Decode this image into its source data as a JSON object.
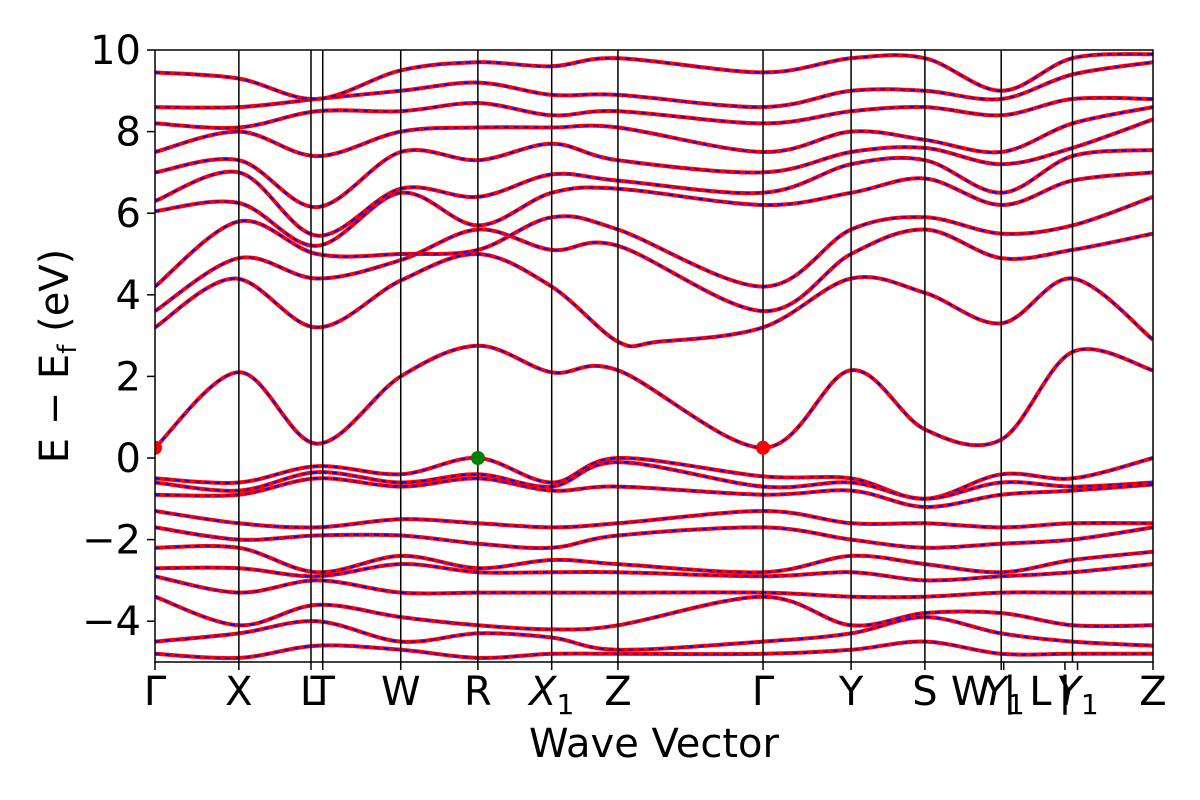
{
  "chart_data": {
    "type": "line",
    "xlabel": "Wave Vector",
    "ylabel": "E − E_f (eV)",
    "ylabel_main": "E − E",
    "ylabel_sub": "f",
    "ylabel_unit": " (eV)",
    "ylim": [
      -5,
      10
    ],
    "yticks": [
      -4,
      -2,
      0,
      2,
      4,
      6,
      8,
      10
    ],
    "ytick_labels": [
      "−4",
      "−2",
      "0",
      "2",
      "4",
      "6",
      "8",
      "10"
    ],
    "grid": false,
    "kpath_ticks": [
      {
        "label": "Γ",
        "x": 0.0
      },
      {
        "label": "X",
        "x": 1.0
      },
      {
        "label": "L",
        "x": 1.86
      },
      {
        "label": "T",
        "x": 2.0
      },
      {
        "label": "W",
        "x": 2.93
      },
      {
        "label": "R",
        "x": 3.85
      },
      {
        "label": "X",
        "sub": "1",
        "italic": true,
        "x": 4.73
      },
      {
        "label": "Z",
        "x": 5.52
      },
      {
        "label": "Γ",
        "x": 7.25
      },
      {
        "label": "Y",
        "x": 8.3
      },
      {
        "label": "S",
        "x": 9.18
      },
      {
        "label": "W | L",
        "x": 10.09
      },
      {
        "label": "Y",
        "sub": "1",
        "italic": true,
        "x": 10.12
      },
      {
        "label": "|",
        "x": 10.85
      },
      {
        "label": "Y",
        "sub": "1",
        "italic": true,
        "x": 11.0
      },
      {
        "label": "Z",
        "x": 11.9
      }
    ],
    "vertical_lines_x": [
      1.0,
      1.86,
      2.0,
      2.93,
      3.85,
      4.73,
      5.52,
      7.25,
      8.3,
      9.18,
      10.09,
      10.94
    ],
    "x_range": [
      0,
      11.9
    ],
    "series": [
      {
        "style": "band-red-blue-dashed",
        "x": [
          0,
          1.0,
          1.93,
          2.93,
          3.85,
          4.73,
          5.52,
          7.25,
          8.3,
          9.18,
          10.09,
          10.94,
          11.9
        ],
        "y": [
          0.25,
          2.1,
          0.35,
          2.0,
          2.75,
          2.1,
          2.15,
          0.25,
          2.15,
          0.7,
          0.45,
          2.6,
          2.15
        ]
      },
      {
        "style": "band-red-blue-dashed",
        "x": [
          0,
          0.95,
          1.93,
          2.93,
          3.85,
          4.73,
          5.52,
          6.0,
          7.25,
          8.3,
          9.18,
          10.09,
          10.94,
          11.9
        ],
        "y": [
          3.2,
          4.4,
          3.2,
          4.35,
          5.0,
          4.2,
          2.85,
          2.85,
          3.2,
          4.4,
          4.05,
          3.3,
          4.4,
          2.9
        ]
      },
      {
        "style": "band-red-blue-dashed",
        "x": [
          0,
          1.0,
          1.93,
          2.93,
          3.85,
          4.73,
          5.52,
          7.25,
          8.3,
          9.18,
          10.09,
          10.94,
          11.9
        ],
        "y": [
          3.6,
          4.9,
          4.4,
          4.85,
          5.6,
          5.1,
          5.2,
          3.6,
          5.0,
          5.6,
          4.9,
          5.1,
          5.5
        ]
      },
      {
        "style": "band-red-blue-dashed",
        "x": [
          0,
          1.0,
          1.93,
          2.93,
          3.85,
          4.73,
          5.52,
          7.25,
          8.3,
          9.18,
          10.09,
          10.94,
          11.9
        ],
        "y": [
          4.2,
          5.8,
          5.0,
          5.0,
          5.1,
          5.9,
          5.6,
          4.2,
          5.6,
          5.9,
          5.5,
          5.7,
          6.4
        ]
      },
      {
        "style": "band-red-blue-dashed",
        "x": [
          0,
          1.0,
          1.93,
          2.93,
          3.85,
          4.73,
          5.52,
          7.25,
          8.3,
          9.18,
          10.09,
          10.94,
          11.9
        ],
        "y": [
          6.05,
          6.25,
          5.2,
          6.5,
          5.7,
          6.5,
          6.6,
          6.2,
          6.5,
          6.85,
          6.2,
          6.8,
          7.0
        ]
      },
      {
        "style": "band-red-blue-dashed",
        "x": [
          0,
          1.0,
          1.93,
          2.93,
          3.85,
          4.73,
          5.52,
          7.25,
          8.3,
          9.18,
          10.09,
          10.94,
          11.9
        ],
        "y": [
          6.3,
          7.0,
          5.45,
          6.6,
          6.4,
          6.95,
          6.8,
          6.5,
          7.2,
          7.3,
          6.5,
          7.4,
          7.55
        ]
      },
      {
        "style": "band-red-blue-dashed",
        "x": [
          0,
          1.0,
          1.93,
          2.93,
          3.85,
          4.73,
          5.52,
          7.25,
          8.3,
          9.18,
          10.09,
          10.94,
          11.9
        ],
        "y": [
          7.0,
          7.3,
          6.15,
          7.5,
          7.3,
          7.7,
          7.3,
          7.0,
          7.5,
          7.6,
          7.2,
          7.6,
          8.3
        ]
      },
      {
        "style": "band-red-blue-dashed",
        "x": [
          0,
          1.0,
          1.93,
          2.93,
          3.85,
          4.73,
          5.52,
          7.25,
          8.3,
          9.18,
          10.09,
          10.94,
          11.9
        ],
        "y": [
          7.5,
          8.0,
          7.4,
          8.0,
          8.1,
          8.1,
          8.1,
          7.5,
          8.0,
          7.8,
          7.5,
          8.2,
          8.6
        ]
      },
      {
        "style": "band-red-blue-dashed",
        "x": [
          0,
          1.0,
          1.93,
          2.93,
          3.85,
          4.73,
          5.52,
          7.25,
          8.3,
          9.18,
          10.09,
          10.94,
          11.9
        ],
        "y": [
          8.2,
          8.1,
          8.5,
          8.5,
          8.7,
          8.4,
          8.5,
          8.2,
          8.5,
          8.6,
          8.4,
          8.8,
          8.8
        ]
      },
      {
        "style": "band-red-blue-dashed",
        "x": [
          0,
          1.0,
          1.93,
          2.93,
          3.85,
          4.73,
          5.52,
          7.25,
          8.3,
          9.18,
          10.09,
          10.94,
          11.9
        ],
        "y": [
          8.6,
          8.6,
          8.8,
          9.0,
          9.2,
          8.9,
          8.9,
          8.6,
          9.0,
          9.0,
          8.8,
          9.4,
          9.7
        ]
      },
      {
        "style": "band-red-blue-dashed",
        "x": [
          0,
          1.0,
          1.93,
          2.93,
          3.85,
          4.73,
          5.52,
          7.25,
          8.3,
          9.18,
          10.09,
          10.94,
          11.9
        ],
        "y": [
          9.45,
          9.3,
          8.8,
          9.5,
          9.7,
          9.6,
          9.8,
          9.45,
          9.8,
          9.8,
          9.0,
          9.8,
          9.9
        ]
      },
      {
        "style": "band-red-blue-dashed",
        "x": [
          0,
          1.0,
          1.93,
          2.93,
          3.85,
          4.73,
          5.52,
          7.25,
          8.3,
          9.18,
          10.09,
          10.94,
          11.9
        ],
        "y": [
          -0.5,
          -0.6,
          -0.2,
          -0.4,
          0.0,
          -0.6,
          0.0,
          -0.45,
          -0.5,
          -1.0,
          -0.4,
          -0.5,
          0.0
        ]
      },
      {
        "style": "band-red-blue-dashed",
        "x": [
          0,
          1.0,
          1.93,
          2.93,
          3.85,
          4.73,
          5.52,
          7.25,
          8.3,
          9.18,
          10.09,
          10.94,
          11.9
        ],
        "y": [
          -0.6,
          -0.8,
          -0.35,
          -0.6,
          -0.4,
          -0.7,
          -0.1,
          -0.7,
          -0.6,
          -1.0,
          -0.6,
          -0.7,
          -0.6
        ]
      },
      {
        "style": "band-red-blue-dashed",
        "x": [
          0,
          1.0,
          1.93,
          2.93,
          3.85,
          4.73,
          5.52,
          7.25,
          8.3,
          9.18,
          10.09,
          10.94,
          11.9
        ],
        "y": [
          -0.9,
          -0.9,
          -0.5,
          -0.7,
          -0.5,
          -0.8,
          -0.7,
          -0.9,
          -0.8,
          -1.2,
          -0.9,
          -0.8,
          -0.65
        ]
      },
      {
        "style": "band-red-blue-dashed",
        "x": [
          0,
          1.0,
          1.93,
          2.93,
          3.85,
          4.73,
          5.52,
          7.25,
          8.3,
          9.18,
          10.09,
          10.94,
          11.9
        ],
        "y": [
          -1.3,
          -1.6,
          -1.7,
          -1.5,
          -1.6,
          -1.7,
          -1.6,
          -1.3,
          -1.6,
          -1.6,
          -1.7,
          -1.6,
          -1.6
        ]
      },
      {
        "style": "band-red-blue-dashed",
        "x": [
          0,
          1.0,
          1.93,
          2.93,
          3.85,
          4.73,
          5.52,
          7.25,
          8.3,
          9.18,
          10.09,
          10.94,
          11.9
        ],
        "y": [
          -1.7,
          -2.0,
          -1.9,
          -1.9,
          -2.1,
          -2.2,
          -1.9,
          -1.7,
          -2.0,
          -2.2,
          -2.1,
          -2.0,
          -1.7
        ]
      },
      {
        "style": "band-red-blue-dashed",
        "x": [
          0,
          1.0,
          1.93,
          2.93,
          3.85,
          4.73,
          5.52,
          7.25,
          8.3,
          9.18,
          10.09,
          10.94,
          11.9
        ],
        "y": [
          -2.2,
          -2.2,
          -2.8,
          -2.4,
          -2.7,
          -2.5,
          -2.6,
          -2.8,
          -2.4,
          -2.6,
          -2.8,
          -2.5,
          -2.3
        ]
      },
      {
        "style": "band-red-blue-dashed",
        "x": [
          0,
          1.0,
          1.93,
          2.93,
          3.85,
          4.73,
          5.52,
          7.25,
          8.3,
          9.18,
          10.09,
          10.94,
          11.9
        ],
        "y": [
          -2.7,
          -2.7,
          -2.9,
          -2.6,
          -2.8,
          -2.8,
          -2.8,
          -2.9,
          -2.8,
          -3.0,
          -2.9,
          -2.8,
          -2.6
        ]
      },
      {
        "style": "band-red-blue-dashed",
        "x": [
          0,
          1.0,
          1.93,
          2.93,
          3.85,
          4.73,
          5.52,
          7.25,
          8.3,
          9.18,
          10.09,
          10.94,
          11.9
        ],
        "y": [
          -2.9,
          -3.3,
          -3.0,
          -3.3,
          -3.3,
          -3.3,
          -3.3,
          -3.3,
          -3.4,
          -3.4,
          -3.3,
          -3.3,
          -3.3
        ]
      },
      {
        "style": "band-red-blue-dashed",
        "x": [
          0,
          1.0,
          1.93,
          2.93,
          3.85,
          4.73,
          5.52,
          7.25,
          8.3,
          9.18,
          10.09,
          10.94,
          11.9
        ],
        "y": [
          -3.4,
          -4.1,
          -3.6,
          -3.9,
          -4.1,
          -4.2,
          -4.1,
          -3.4,
          -4.1,
          -3.8,
          -3.8,
          -4.1,
          -4.1
        ]
      },
      {
        "style": "band-red-blue-dashed",
        "x": [
          0,
          1.0,
          1.93,
          2.93,
          3.85,
          4.73,
          5.52,
          7.25,
          8.3,
          9.18,
          10.09,
          10.94,
          11.9
        ],
        "y": [
          -4.5,
          -4.3,
          -4.0,
          -4.5,
          -4.3,
          -4.4,
          -4.7,
          -4.5,
          -4.3,
          -3.9,
          -4.3,
          -4.5,
          -4.6
        ]
      },
      {
        "style": "band-red-blue-dashed",
        "x": [
          0,
          1.0,
          1.93,
          2.93,
          3.85,
          4.73,
          5.52,
          7.25,
          8.3,
          9.18,
          10.09,
          10.94,
          11.9
        ],
        "y": [
          -4.8,
          -4.9,
          -4.6,
          -4.7,
          -4.9,
          -4.8,
          -4.8,
          -4.8,
          -4.7,
          -4.5,
          -4.8,
          -4.8,
          -4.8
        ]
      }
    ],
    "markers": [
      {
        "x": 0.0,
        "y": 0.25,
        "color": "#ff0000"
      },
      {
        "x": 7.25,
        "y": 0.25,
        "color": "#ff0000"
      },
      {
        "x": 3.85,
        "y": 0.0,
        "color": "#008000"
      }
    ],
    "colors": {
      "band_solid": "#ff0000",
      "band_dashed": "#0000ff",
      "vlines": "#000000",
      "vbm_marker": "#008000",
      "cbm_marker": "#ff0000"
    }
  }
}
